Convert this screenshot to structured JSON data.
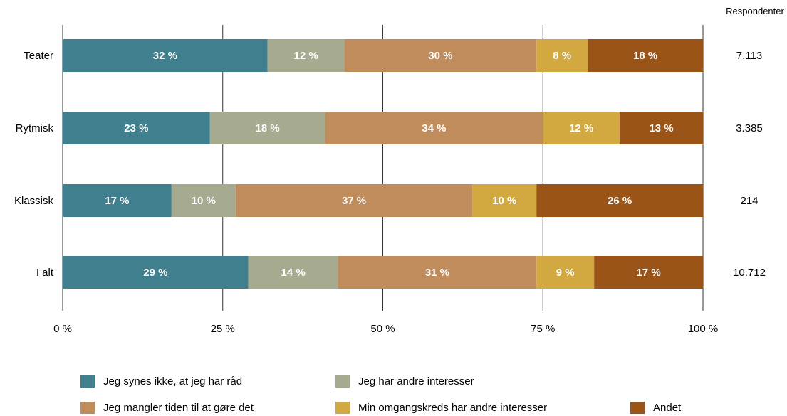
{
  "chart_data": {
    "type": "bar",
    "orientation": "horizontal",
    "stacked": true,
    "categories": [
      "Teater",
      "Rytmisk",
      "Klassisk",
      "I alt"
    ],
    "series": [
      {
        "name": "Jeg synes ikke, at jeg har råd",
        "color": "#3f7f8e",
        "values": [
          32,
          23,
          17,
          29
        ],
        "labels": [
          "32 %",
          "23 %",
          "17 %",
          "29 %"
        ]
      },
      {
        "name": "Jeg har andre interesser",
        "color": "#a6aa8e",
        "values": [
          12,
          18,
          10,
          14
        ],
        "labels": [
          "12 %",
          "18 %",
          "10 %",
          "14 %"
        ]
      },
      {
        "name": "Jeg mangler tiden til at gøre det",
        "color": "#c08c5c",
        "values": [
          30,
          34,
          37,
          31
        ],
        "labels": [
          "30 %",
          "34 %",
          "37 %",
          "31 %"
        ]
      },
      {
        "name": "Min omgangskreds har andre interesser",
        "color": "#d2a840",
        "values": [
          8,
          12,
          10,
          9
        ],
        "labels": [
          "8 %",
          "12 %",
          "10 %",
          "9 %"
        ]
      },
      {
        "name": "Andet",
        "color": "#9a5418",
        "values": [
          18,
          13,
          26,
          17
        ],
        "labels": [
          "18 %",
          "13 %",
          "26 %",
          "17 %"
        ]
      }
    ],
    "xlim": [
      0,
      100
    ],
    "xticks": [
      0,
      25,
      50,
      75,
      100
    ],
    "xtick_labels": [
      "0 %",
      "25 %",
      "50 %",
      "75 %",
      "100 %"
    ],
    "grid": true,
    "legend_position": "bottom",
    "respondents_header": "Respondenter",
    "respondents": [
      "7.113",
      "3.385",
      "214",
      "10.712"
    ]
  }
}
